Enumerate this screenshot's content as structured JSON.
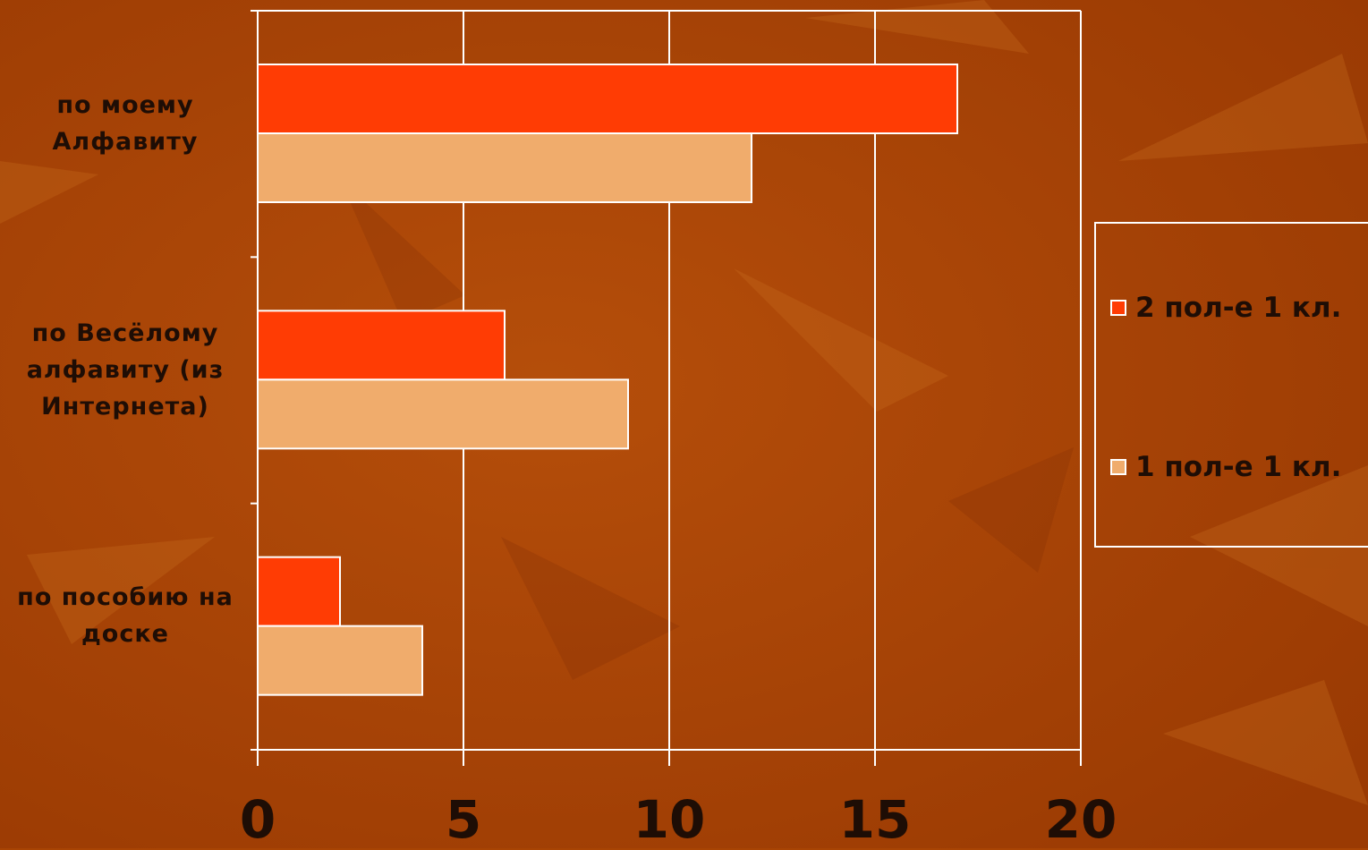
{
  "chart_data": {
    "type": "bar",
    "orientation": "horizontal",
    "categories": [
      "по моему\nАлфавиту",
      "по Весёлому\nалфавиту (из\nИнтернета)",
      "по пособию на\nдоске"
    ],
    "series": [
      {
        "name": "2 пол-е 1 кл.",
        "color": "#ff3c04",
        "values": [
          17,
          6,
          2
        ]
      },
      {
        "name": "1 пол-е 1 кл.",
        "color": "#f0ac6c",
        "values": [
          12,
          9,
          4
        ]
      }
    ],
    "xlim": [
      0,
      20
    ],
    "xticks": [
      "0",
      "5",
      "10",
      "15",
      "20"
    ],
    "grid": true,
    "legend_position": "right",
    "title": "",
    "xlabel": "",
    "ylabel": ""
  }
}
